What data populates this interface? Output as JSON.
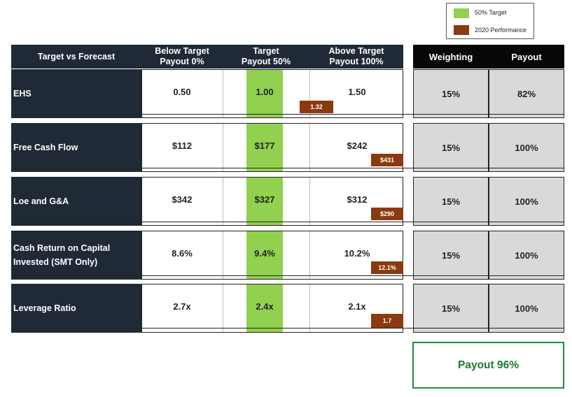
{
  "legend": {
    "items": [
      {
        "label": "50% Target",
        "color": "#92d050"
      },
      {
        "label": "2020 Performance",
        "color": "#8b3a0f"
      }
    ]
  },
  "headers": {
    "metric": "Target vs Forecast",
    "below": "Below Target\nPayout 0%",
    "target": "Target\nPayout 50%",
    "above": "Above Target\nPayout 100%",
    "weighting": "Weighting",
    "payout": "Payout"
  },
  "rows": [
    {
      "label": "EHS",
      "below": "0.50",
      "target": "1.00",
      "above": "1.50",
      "performance": "1.32",
      "weighting": "15%",
      "payout": "82%"
    },
    {
      "label": "Free Cash Flow",
      "below": "$112",
      "target": "$177",
      "above": "$242",
      "performance": "$431",
      "weighting": "15%",
      "payout": "100%"
    },
    {
      "label": "Loe and G&A",
      "below": "$342",
      "target": "$327",
      "above": "$312",
      "performance": "$290",
      "weighting": "15%",
      "payout": "100%"
    },
    {
      "label": "Cash Return on Capital\nInvested (SMT Only)",
      "below": "8.6%",
      "target": "9.4%",
      "above": "10.2%",
      "performance": "12.1%",
      "weighting": "15%",
      "payout": "100%"
    },
    {
      "label": "Leverage Ratio",
      "below": "2.7x",
      "target": "2.4x",
      "above": "2.1x",
      "performance": "1.7",
      "weighting": "15%",
      "payout": "100%"
    }
  ],
  "total": {
    "label": "Payout 96%"
  }
}
